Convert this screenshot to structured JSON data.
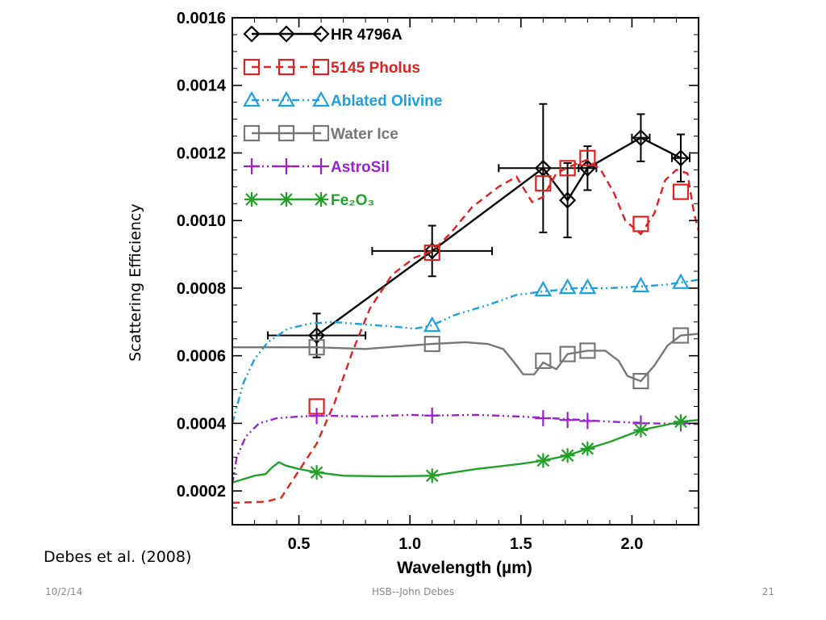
{
  "slide": {
    "citation": "Debes et al. (2008)",
    "footer_date": "10/2/14",
    "footer_center": "HSB--John Debes",
    "page_number": "21"
  },
  "chart_data": {
    "type": "line",
    "xlabel": "Wavelength (µm)",
    "ylabel": "Scattering Efficiency",
    "xlim": [
      0.2,
      2.3
    ],
    "ylim": [
      0.0001,
      0.0016
    ],
    "x_ticks": [
      0.5,
      1.0,
      1.5,
      2.0
    ],
    "x_tick_labels": [
      "0.5",
      "1.0",
      "1.5",
      "2.0"
    ],
    "y_ticks": [
      0.0002,
      0.0004,
      0.0006,
      0.0008,
      0.001,
      0.0012,
      0.0014,
      0.0016
    ],
    "y_tick_labels": [
      "0.0002",
      "0.0004",
      "0.0006",
      "0.0008",
      "0.0010",
      "0.0012",
      "0.0014",
      "0.0016"
    ],
    "grid": false,
    "legend_position": "top-left",
    "series": [
      {
        "name": "HR 4796A",
        "color": "#000000",
        "style": "solid",
        "marker": "diamond",
        "x": [
          0.58,
          1.1,
          1.6,
          1.71,
          1.8,
          2.04,
          2.22
        ],
        "y": [
          0.00066,
          0.00091,
          0.001155,
          0.00106,
          0.001155,
          0.001245,
          0.001185
        ],
        "x_err": [
          0.22,
          0.27,
          0.2,
          0,
          0.04,
          0.04,
          0.04
        ],
        "y_err": [
          6.5e-05,
          7.5e-05,
          0.00019,
          0.00011,
          6.5e-05,
          7e-05,
          7e-05
        ]
      },
      {
        "name": "5145 Pholus",
        "color": "#dd2222",
        "style": "dashed",
        "marker": "square",
        "curve": [
          [
            0.2,
            0.000165
          ],
          [
            0.35,
            0.000168
          ],
          [
            0.42,
            0.00018
          ],
          [
            0.5,
            0.00026
          ],
          [
            0.58,
            0.00034
          ],
          [
            0.66,
            0.00046
          ],
          [
            0.74,
            0.00061
          ],
          [
            0.82,
            0.00074
          ],
          [
            0.92,
            0.00084
          ],
          [
            1.02,
            0.00089
          ],
          [
            1.1,
            0.00091
          ],
          [
            1.18,
            0.00096
          ],
          [
            1.28,
            0.00104
          ],
          [
            1.4,
            0.0011
          ],
          [
            1.48,
            0.00113
          ],
          [
            1.55,
            0.001055
          ],
          [
            1.6,
            0.00107
          ],
          [
            1.66,
            0.00114
          ],
          [
            1.72,
            0.00116
          ],
          [
            1.8,
            0.00118
          ],
          [
            1.86,
            0.00115
          ],
          [
            1.92,
            0.00108
          ],
          [
            1.97,
            0.001
          ],
          [
            2.04,
            0.00096
          ],
          [
            2.1,
            0.00102
          ],
          [
            2.15,
            0.00112
          ],
          [
            2.2,
            0.00115
          ],
          [
            2.25,
            0.00114
          ],
          [
            2.28,
            0.00102
          ],
          [
            2.3,
            0.00097
          ]
        ],
        "marker_x": [
          0.58,
          1.1,
          1.6,
          1.71,
          1.8,
          2.04,
          2.22
        ],
        "marker_y": [
          0.00045,
          0.000905,
          0.00111,
          0.001155,
          0.001185,
          0.00099,
          0.001085
        ]
      },
      {
        "name": "Ablated Olivine",
        "color": "#1ea0e0",
        "style": "dashdot",
        "marker": "triangle",
        "curve": [
          [
            0.2,
            0.0004
          ],
          [
            0.25,
            0.00052
          ],
          [
            0.3,
            0.00059
          ],
          [
            0.36,
            0.00064
          ],
          [
            0.45,
            0.00068
          ],
          [
            0.55,
            0.000695
          ],
          [
            0.65,
            0.0007
          ],
          [
            0.75,
            0.000695
          ],
          [
            0.85,
            0.00069
          ],
          [
            0.95,
            0.000685
          ],
          [
            1.02,
            0.00068
          ],
          [
            1.1,
            0.00069
          ],
          [
            1.2,
            0.00072
          ],
          [
            1.35,
            0.00075
          ],
          [
            1.48,
            0.00078
          ],
          [
            1.6,
            0.00079
          ],
          [
            1.75,
            0.0008
          ],
          [
            1.9,
            0.0008
          ],
          [
            2.04,
            0.000805
          ],
          [
            2.15,
            0.00081
          ],
          [
            2.3,
            0.000825
          ]
        ],
        "marker_x": [
          1.1,
          1.6,
          1.71,
          1.8,
          2.04,
          2.22
        ],
        "marker_y": [
          0.00069,
          0.000795,
          0.000802,
          0.000802,
          0.000807,
          0.000817
        ]
      },
      {
        "name": "Water Ice",
        "color": "#777777",
        "style": "solid",
        "marker": "square",
        "curve": [
          [
            0.2,
            0.000625
          ],
          [
            0.4,
            0.000625
          ],
          [
            0.58,
            0.000625
          ],
          [
            0.8,
            0.00062
          ],
          [
            1.0,
            0.00063
          ],
          [
            1.1,
            0.000635
          ],
          [
            1.25,
            0.00064
          ],
          [
            1.35,
            0.000635
          ],
          [
            1.42,
            0.00062
          ],
          [
            1.47,
            0.00058
          ],
          [
            1.51,
            0.000545
          ],
          [
            1.56,
            0.000545
          ],
          [
            1.6,
            0.00058
          ],
          [
            1.66,
            0.00056
          ],
          [
            1.71,
            0.000605
          ],
          [
            1.8,
            0.000615
          ],
          [
            1.88,
            0.000615
          ],
          [
            1.94,
            0.000585
          ],
          [
            1.98,
            0.00054
          ],
          [
            2.04,
            0.000525
          ],
          [
            2.1,
            0.00057
          ],
          [
            2.16,
            0.00063
          ],
          [
            2.22,
            0.00066
          ],
          [
            2.3,
            0.000665
          ]
        ],
        "marker_x": [
          0.58,
          1.1,
          1.6,
          1.71,
          1.8,
          2.04,
          2.22
        ],
        "marker_y": [
          0.000625,
          0.000635,
          0.000585,
          0.000605,
          0.000615,
          0.000525,
          0.00066
        ]
      },
      {
        "name": "AstroSil",
        "color": "#9922cc",
        "style": "dashdot",
        "marker": "plus",
        "curve": [
          [
            0.2,
            0.00022
          ],
          [
            0.22,
            0.0003
          ],
          [
            0.26,
            0.00036
          ],
          [
            0.32,
            0.0004
          ],
          [
            0.4,
            0.000415
          ],
          [
            0.5,
            0.00042
          ],
          [
            0.6,
            0.000423
          ],
          [
            0.8,
            0.00042
          ],
          [
            1.0,
            0.000425
          ],
          [
            1.1,
            0.000423
          ],
          [
            1.3,
            0.000425
          ],
          [
            1.5,
            0.00042
          ],
          [
            1.7,
            0.000413
          ],
          [
            1.9,
            0.000405
          ],
          [
            2.1,
            0.0004
          ],
          [
            2.3,
            0.000398
          ]
        ],
        "marker_x": [
          0.58,
          1.1,
          1.6,
          1.71,
          1.8,
          2.04,
          2.22
        ],
        "marker_y": [
          0.000422,
          0.000423,
          0.000415,
          0.00041,
          0.000407,
          0.0004,
          0.0004
        ]
      },
      {
        "name": "Fe₂O₃",
        "color": "#22a02a",
        "style": "solid",
        "marker": "asterisk",
        "curve": [
          [
            0.2,
            0.000225
          ],
          [
            0.25,
            0.000235
          ],
          [
            0.3,
            0.000245
          ],
          [
            0.35,
            0.00025
          ],
          [
            0.38,
            0.00027
          ],
          [
            0.41,
            0.000285
          ],
          [
            0.44,
            0.000275
          ],
          [
            0.5,
            0.000265
          ],
          [
            0.58,
            0.000255
          ],
          [
            0.7,
            0.000245
          ],
          [
            0.9,
            0.000243
          ],
          [
            1.1,
            0.000245
          ],
          [
            1.3,
            0.000265
          ],
          [
            1.5,
            0.00028
          ],
          [
            1.6,
            0.00029
          ],
          [
            1.71,
            0.000305
          ],
          [
            1.8,
            0.000325
          ],
          [
            1.9,
            0.000345
          ],
          [
            2.04,
            0.00038
          ],
          [
            2.15,
            0.000395
          ],
          [
            2.22,
            0.000405
          ],
          [
            2.3,
            0.00041
          ]
        ],
        "marker_x": [
          0.58,
          1.1,
          1.6,
          1.71,
          1.8,
          2.04,
          2.22
        ],
        "marker_y": [
          0.000255,
          0.000245,
          0.00029,
          0.000305,
          0.000325,
          0.00038,
          0.000405
        ]
      }
    ]
  }
}
